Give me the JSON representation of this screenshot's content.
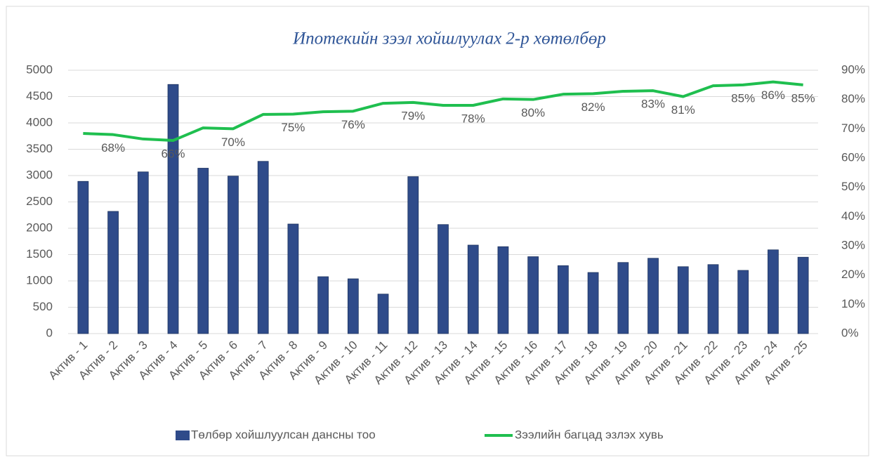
{
  "chart_data": {
    "type": "bar_line",
    "title": "Ипотекийн зээл хойшлуулах 2-р хөтөлбөр",
    "categories": [
      "Актив - 1",
      "Актив - 2",
      "Актив - 3",
      "Актив - 4",
      "Актив - 5",
      "Актив - 6",
      "Актив - 7",
      "Актив - 8",
      "Актив - 9",
      "Актив - 10",
      "Актив - 11",
      "Актив - 12",
      "Актив - 13",
      "Актив - 14",
      "Актив - 15",
      "Актив - 16",
      "Актив - 17",
      "Актив - 18",
      "Актив - 19",
      "Актив - 20",
      "Актив - 21",
      "Актив - 22",
      "Актив - 23",
      "Актив - 24",
      "Актив - 25"
    ],
    "series": [
      {
        "name": "Төлбөр хойшлуулсан дансны тоо",
        "color": "#2f4b8a",
        "type": "bar",
        "values": [
          2890,
          2320,
          3070,
          4730,
          3140,
          2990,
          3270,
          2080,
          1080,
          1040,
          750,
          2980,
          2070,
          1680,
          1650,
          1460,
          1290,
          1160,
          1350,
          1430,
          1270,
          1310,
          1200,
          1590,
          1450
        ]
      },
      {
        "name": "Зээлийн багцад эзлэх хувь",
        "color": "#1fbf4f",
        "type": "line",
        "axis": "y2",
        "values": [
          68.4,
          68,
          66.5,
          66,
          70.3,
          70,
          74.9,
          75,
          75.8,
          76,
          78.7,
          79,
          78,
          78,
          80.2,
          80,
          81.8,
          82,
          82.8,
          83,
          81,
          84.7,
          85,
          86,
          85
        ],
        "value_labels": [
          null,
          "68%",
          null,
          "66%",
          null,
          "70%",
          null,
          "75%",
          null,
          "76%",
          null,
          "79%",
          null,
          "78%",
          null,
          "80%",
          null,
          "82%",
          null,
          "83%",
          "81%",
          null,
          "85%",
          "86%",
          "85%"
        ]
      }
    ],
    "ylim": [
      0,
      5000
    ],
    "yticks": [
      0,
      500,
      1000,
      1500,
      2000,
      2500,
      3000,
      3500,
      4000,
      4500,
      5000
    ],
    "y2lim": [
      0,
      90
    ],
    "y2ticks": [
      {
        "value": 0,
        "label": "0%"
      },
      {
        "value": 10,
        "label": "10%"
      },
      {
        "value": 20,
        "label": "20%"
      },
      {
        "value": 30,
        "label": "30%"
      },
      {
        "value": 40,
        "label": "40%"
      },
      {
        "value": 50,
        "label": "50%"
      },
      {
        "value": 60,
        "label": "60%"
      },
      {
        "value": 70,
        "label": "70%"
      },
      {
        "value": 80,
        "label": "80%"
      },
      {
        "value": 90,
        "label": "90%"
      }
    ],
    "grid": true,
    "legend": "bottom"
  }
}
